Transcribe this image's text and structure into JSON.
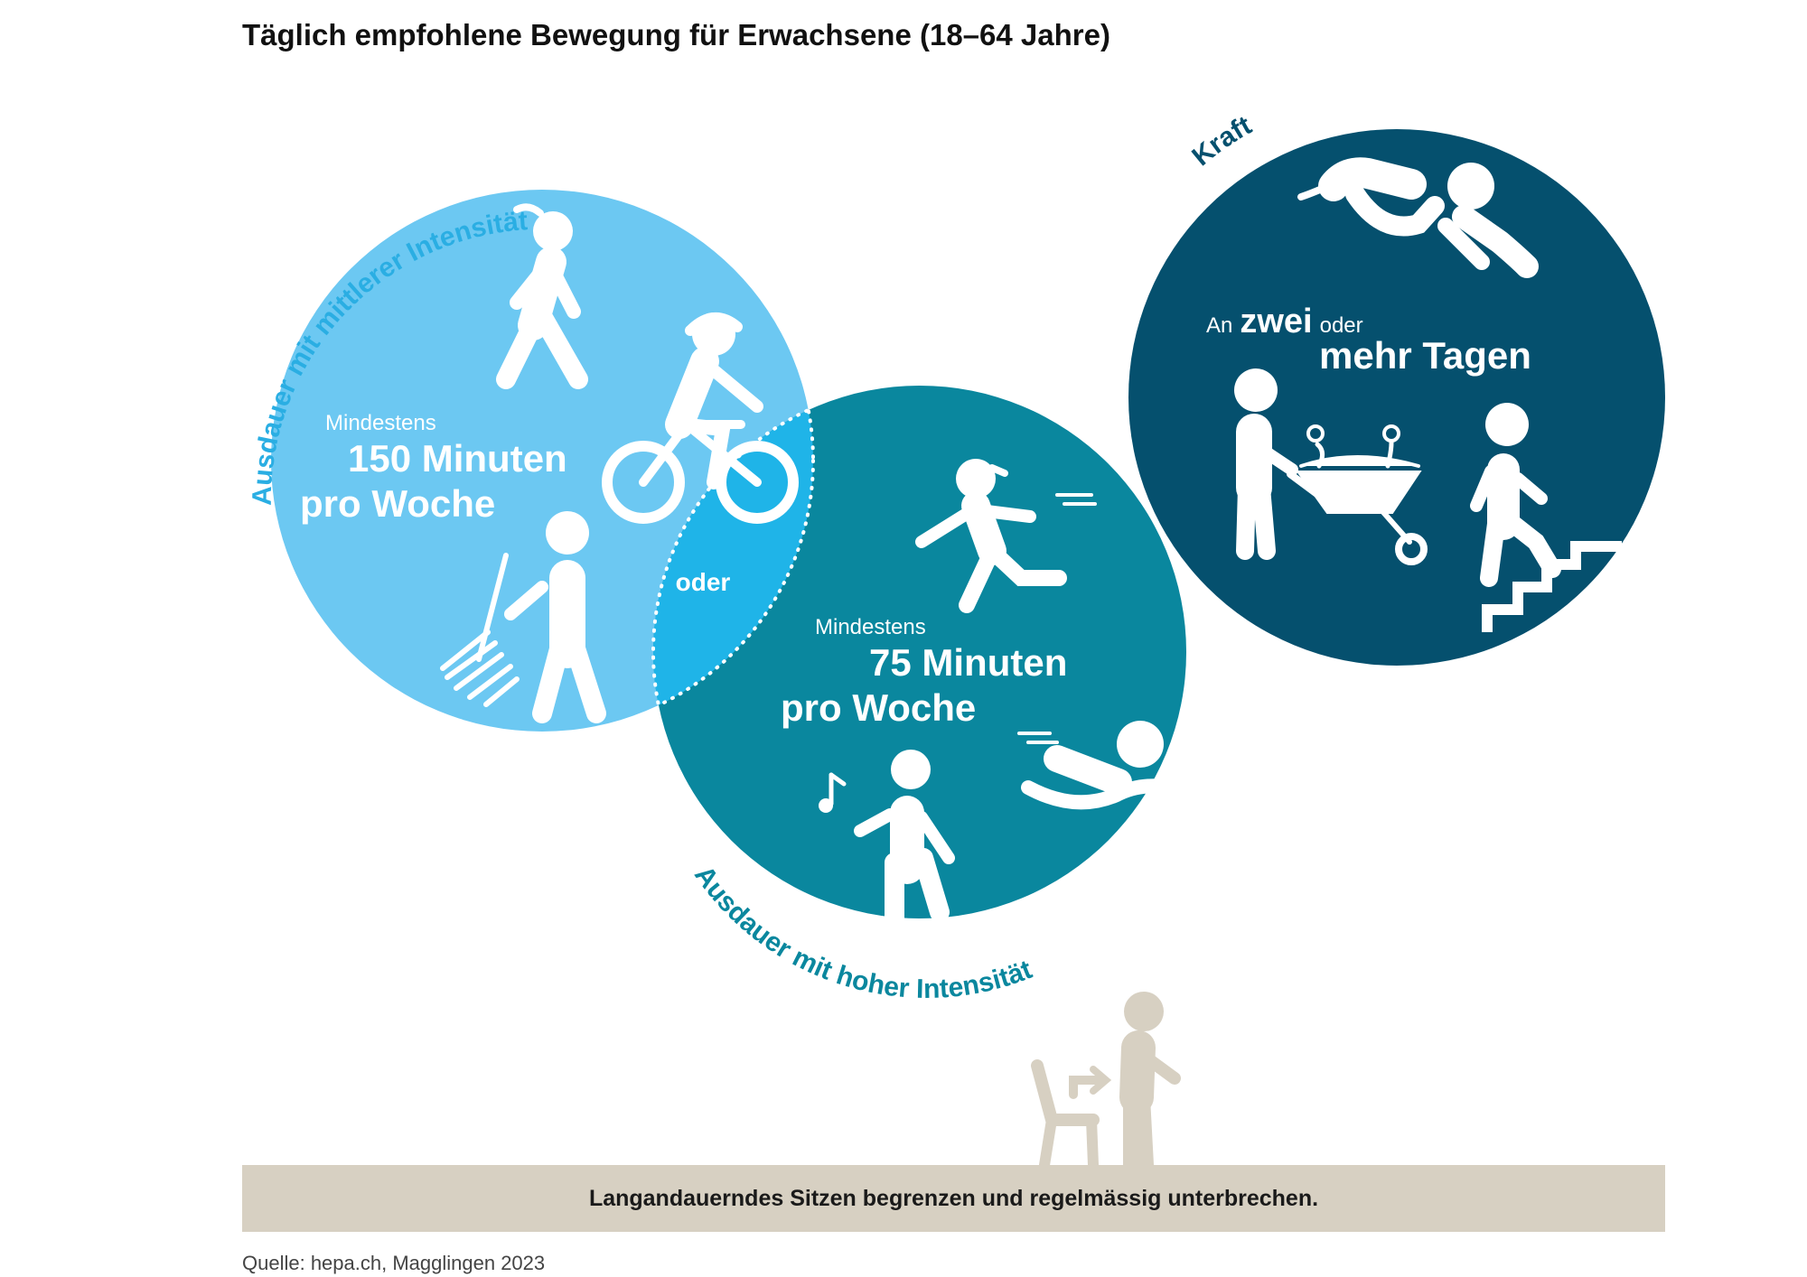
{
  "title": "Täglich empfohlene Bewegung für Erwachsene (18–64 Jahre)",
  "colors": {
    "moderate": "#6cc8f2",
    "overlap": "#1fb4e8",
    "vigorous": "#0a879e",
    "strength": "#05506e",
    "arc_moderate": "#2aaee3",
    "arc_vigorous": "#0a879e",
    "arc_strength": "#05506e",
    "figure_beige": "#d7d0c2"
  },
  "moderate": {
    "arc_label": "Ausdauer mit mittlerer Intensität",
    "prefix": "Mindestens",
    "amount": "150 Minuten",
    "unit": "pro Woche",
    "icons": [
      "walking-icon",
      "cycling-icon",
      "raking-icon"
    ]
  },
  "overlap_label": "oder",
  "vigorous": {
    "arc_label": "Ausdauer mit hoher Intensität",
    "prefix": "Mindestens",
    "amount": "75 Minuten",
    "unit": "pro Woche",
    "icons": [
      "running-icon",
      "swimming-icon",
      "step-aerobics-icon"
    ]
  },
  "strength": {
    "arc_label": "Kraft",
    "line1_a": "An",
    "line1_b": "zwei",
    "line1_c": "oder",
    "line2": "mehr Tagen",
    "icons": [
      "push-up-icon",
      "wheelbarrow-icon",
      "stair-climbing-icon"
    ]
  },
  "sitting": {
    "banner": "Langandauerndes Sitzen begrenzen und regelmässig unterbrechen.",
    "icons": [
      "chair-icon",
      "standing-person-icon"
    ]
  },
  "source": "Quelle: hepa.ch, Magglingen 2023"
}
